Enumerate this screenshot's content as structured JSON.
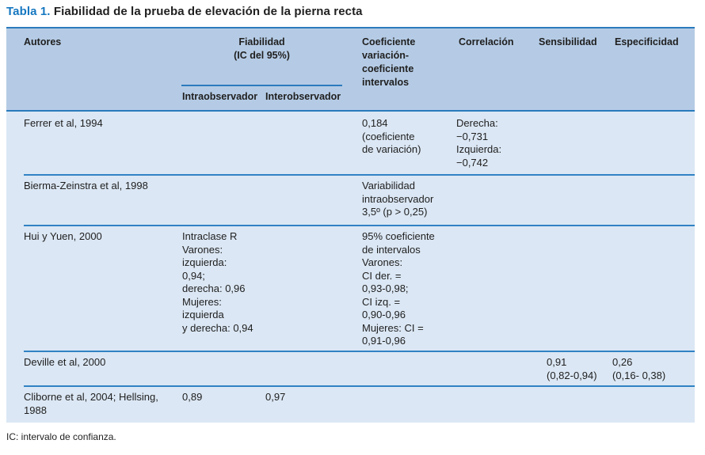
{
  "title": {
    "label": "Tabla 1.",
    "text": " Fiabilidad de la prueba de elevación de la pierna recta"
  },
  "colors": {
    "header_bg": "#b5cbe5",
    "body_bg": "#dbe7f4",
    "line": "#2b7bbd",
    "title_accent": "#1577c0"
  },
  "header": {
    "autores": "Autores",
    "fiabilidad": "Fiabilidad\n(IC del 95%)",
    "intraobservador": "Intraobservador",
    "interobservador": "Interobservador",
    "coeficiente": "Coeficiente\nvariación-\ncoeficiente\nintervalos",
    "correlacion": "Correlación",
    "sensibilidad": "Sensibilidad",
    "especificidad": "Especificidad"
  },
  "rows": [
    {
      "autores": "Ferrer et al, 1994",
      "intra": "",
      "inter": "",
      "coef": "0,184\n(coeficiente\nde variación)",
      "corr": "Derecha:\n−0,731\nIzquierda:\n−0,742",
      "sens": "",
      "espec": ""
    },
    {
      "autores": "Bierma-Zeinstra et al, 1998",
      "intra": "",
      "inter": "",
      "coef": "Variabilidad\nintraobservador\n3,5º (p > 0,25)",
      "corr": "",
      "sens": "",
      "espec": ""
    },
    {
      "autores": "Hui y Yuen, 2000",
      "intra": "Intraclase R\nVarones:\nizquierda:\n0,94;\nderecha: 0,96\nMujeres:\nizquierda\ny derecha: 0,94",
      "inter": "",
      "coef": "95% coeficiente\nde intervalos\nVarones:\nCI der. =\n0,93-0,98;\nCI izq. =\n0,90-0,96\nMujeres: CI =\n0,91-0,96",
      "corr": "",
      "sens": "",
      "espec": ""
    },
    {
      "autores": "Deville et al, 2000",
      "intra": "",
      "inter": "",
      "coef": "",
      "corr": "",
      "sens": "0,91\n(0,82-0,94)",
      "espec": "0,26\n(0,16- 0,38)"
    },
    {
      "autores": "Cliborne et al, 2004; Hellsing, 1988",
      "intra": "0,89",
      "inter": "0,97",
      "coef": "",
      "corr": "",
      "sens": "",
      "espec": ""
    }
  ],
  "footnote": "IC: intervalo de confianza."
}
